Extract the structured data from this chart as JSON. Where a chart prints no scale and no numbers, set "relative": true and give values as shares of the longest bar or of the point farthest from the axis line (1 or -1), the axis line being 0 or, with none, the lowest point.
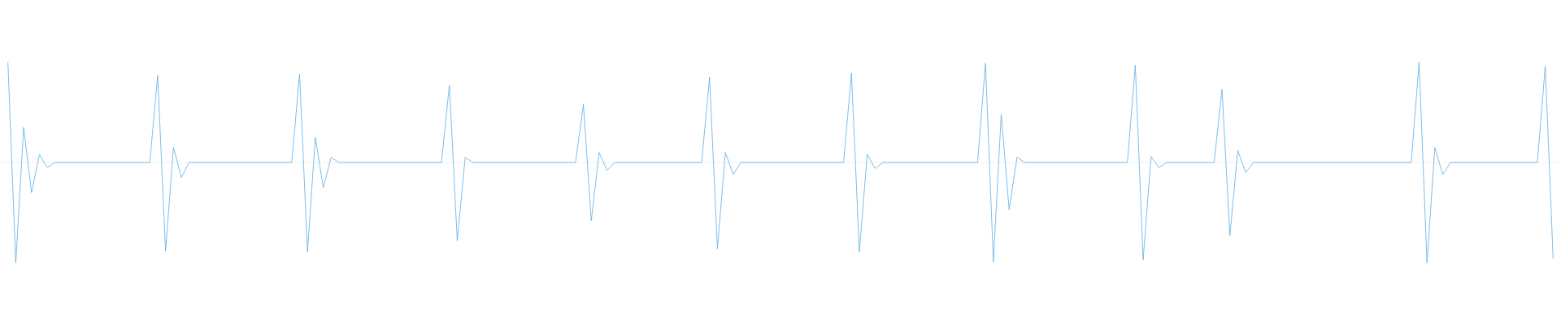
{
  "chart_data": {
    "type": "line",
    "relative": true,
    "color": "#5dade2",
    "categories": [
      null,
      null,
      null,
      null,
      null,
      null,
      null,
      null,
      null,
      null,
      null,
      null,
      null,
      null,
      null,
      null,
      null,
      null,
      null,
      null,
      null,
      null,
      null,
      null,
      null,
      null,
      null,
      null,
      null,
      null,
      null,
      null,
      null,
      null,
      null,
      null,
      null,
      null,
      null,
      null,
      null,
      null,
      null,
      null,
      null,
      null,
      null,
      null,
      null,
      null,
      null,
      null,
      null,
      null,
      null,
      null,
      null,
      null,
      null,
      null,
      null,
      null,
      null,
      null,
      null,
      null,
      null,
      null,
      null,
      null,
      null,
      null,
      null,
      null,
      null,
      null,
      null,
      null,
      null,
      null,
      null,
      null,
      null,
      null,
      null,
      null,
      null,
      null,
      null,
      null,
      null,
      null,
      null,
      null,
      null,
      null,
      null,
      null,
      null,
      null,
      null,
      null,
      null,
      null,
      null,
      null,
      null,
      null,
      null,
      null,
      null,
      null,
      null,
      null,
      null,
      null,
      null,
      null,
      null,
      null,
      null,
      null,
      null,
      null,
      null,
      null,
      null,
      null,
      null,
      null,
      null,
      null,
      null,
      null,
      null,
      null,
      null,
      null,
      null,
      null,
      null,
      null,
      null,
      null,
      null,
      null,
      null,
      null,
      null,
      null,
      null,
      null,
      null,
      null,
      null,
      null,
      null,
      null,
      null,
      null,
      null,
      null,
      null,
      null,
      null,
      null,
      null,
      null,
      null,
      null,
      null,
      null,
      null,
      null,
      null,
      null,
      null,
      null,
      null,
      null,
      null,
      null,
      null,
      null,
      null,
      null,
      null,
      null,
      null,
      null,
      null,
      null,
      null,
      null,
      null,
      null,
      null
    ],
    "values": [
      1.0,
      -1.0,
      0.35,
      -0.3,
      0.08,
      -0.05,
      0,
      0,
      0,
      0,
      0,
      0,
      0,
      0,
      0,
      0,
      0,
      0,
      0,
      0.87,
      -0.88,
      0.15,
      -0.15,
      0,
      0,
      0,
      0,
      0,
      0,
      0,
      0,
      0,
      0,
      0,
      0,
      0,
      0,
      0.88,
      -0.89,
      0.25,
      -0.25,
      0.05,
      0,
      0,
      0,
      0,
      0,
      0,
      0,
      0,
      0,
      0,
      0,
      0,
      0,
      0,
      0.77,
      -0.78,
      0.05,
      0,
      0,
      0,
      0,
      0,
      0,
      0,
      0,
      0,
      0,
      0,
      0,
      0,
      0,
      0.58,
      -0.58,
      0.1,
      -0.08,
      0,
      0,
      0,
      0,
      0,
      0,
      0,
      0,
      0,
      0,
      0,
      0,
      0.85,
      -0.86,
      0.1,
      -0.12,
      0,
      0,
      0,
      0,
      0,
      0,
      0,
      0,
      0,
      0,
      0,
      0,
      0,
      0,
      0.89,
      -0.89,
      0.08,
      -0.06,
      0,
      0,
      0,
      0,
      0,
      0,
      0,
      0,
      0,
      0,
      0,
      0,
      0,
      0.99,
      -0.99,
      0.48,
      -0.47,
      0.05,
      0,
      0,
      0,
      0,
      0,
      0,
      0,
      0,
      0,
      0,
      0,
      0,
      0,
      0,
      0.97,
      -0.97,
      0.06,
      -0.05,
      0,
      0,
      0,
      0,
      0,
      0,
      0,
      0.73,
      -0.73,
      0.12,
      -0.1,
      0,
      0,
      0,
      0,
      0,
      0,
      0,
      0,
      0,
      0,
      0,
      0,
      0,
      0,
      0,
      0,
      0,
      0,
      0,
      0,
      0,
      1.0,
      -1.0,
      0.15,
      -0.12,
      0,
      0,
      0,
      0,
      0,
      0,
      0,
      0,
      0,
      0,
      0,
      0,
      0.96,
      -0.96
    ]
  }
}
